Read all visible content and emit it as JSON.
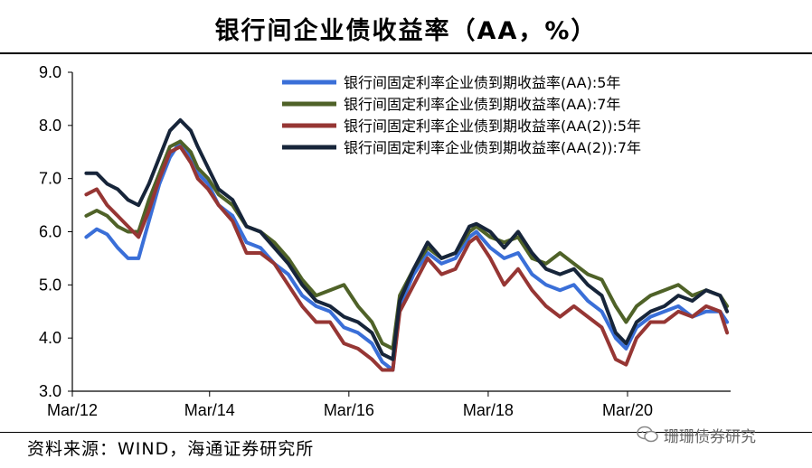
{
  "title": "银行间企业债收益率（AA，%）",
  "source": "资料来源：WIND，海通证券研究所",
  "watermark": "珊珊债券研究",
  "chart_data": {
    "type": "line",
    "title": "银行间企业债收益率（AA，%）",
    "xlabel": "",
    "ylabel": "",
    "ylim": [
      3.0,
      9.0
    ],
    "yticks": [
      3.0,
      4.0,
      5.0,
      6.0,
      7.0,
      8.0,
      9.0
    ],
    "xlim": [
      2012.2,
      2021.65
    ],
    "xticks": [
      {
        "x": 2012.17,
        "label": "Mar/12"
      },
      {
        "x": 2014.17,
        "label": "Mar/14"
      },
      {
        "x": 2016.17,
        "label": "Mar/16"
      },
      {
        "x": 2018.17,
        "label": "Mar/18"
      },
      {
        "x": 2020.17,
        "label": "Mar/20"
      }
    ],
    "legend_position": "top-right",
    "grid": false,
    "series": [
      {
        "name": "银行间固定利率企业债到期收益率(AA):5年",
        "color": "#3a6fd8",
        "x": [
          2012.4,
          2012.55,
          2012.7,
          2012.85,
          2013.0,
          2013.15,
          2013.3,
          2013.45,
          2013.6,
          2013.75,
          2013.9,
          2014.0,
          2014.15,
          2014.3,
          2014.5,
          2014.7,
          2014.9,
          2015.1,
          2015.3,
          2015.5,
          2015.7,
          2015.9,
          2016.1,
          2016.3,
          2016.5,
          2016.65,
          2016.8,
          2016.9,
          2017.1,
          2017.3,
          2017.5,
          2017.7,
          2017.9,
          2018.0,
          2018.2,
          2018.4,
          2018.6,
          2018.8,
          2019.0,
          2019.2,
          2019.4,
          2019.6,
          2019.8,
          2020.0,
          2020.15,
          2020.3,
          2020.5,
          2020.7,
          2020.9,
          2021.1,
          2021.3,
          2021.5,
          2021.6
        ],
        "values": [
          5.9,
          6.05,
          5.95,
          5.7,
          5.5,
          5.5,
          6.2,
          6.9,
          7.4,
          7.7,
          7.4,
          7.1,
          6.9,
          6.5,
          6.3,
          5.8,
          5.7,
          5.4,
          5.2,
          4.8,
          4.6,
          4.5,
          4.2,
          4.1,
          3.9,
          3.55,
          3.4,
          4.6,
          5.2,
          5.6,
          5.4,
          5.5,
          5.9,
          6.0,
          5.7,
          5.5,
          5.6,
          5.2,
          5.0,
          4.9,
          5.0,
          4.7,
          4.5,
          4.0,
          3.8,
          4.2,
          4.4,
          4.5,
          4.6,
          4.4,
          4.5,
          4.5,
          4.3
        ]
      },
      {
        "name": "银行间固定利率企业债到期收益率(AA):7年",
        "color": "#4f6228",
        "x": [
          2012.4,
          2012.55,
          2012.7,
          2012.85,
          2013.0,
          2013.15,
          2013.3,
          2013.45,
          2013.6,
          2013.75,
          2013.9,
          2014.0,
          2014.15,
          2014.3,
          2014.5,
          2014.7,
          2014.9,
          2015.1,
          2015.3,
          2015.5,
          2015.7,
          2015.9,
          2016.1,
          2016.3,
          2016.5,
          2016.65,
          2016.8,
          2016.9,
          2017.1,
          2017.3,
          2017.5,
          2017.7,
          2017.9,
          2018.0,
          2018.2,
          2018.4,
          2018.6,
          2018.8,
          2019.0,
          2019.2,
          2019.4,
          2019.6,
          2019.8,
          2020.0,
          2020.15,
          2020.3,
          2020.5,
          2020.7,
          2020.9,
          2021.1,
          2021.3,
          2021.5,
          2021.6
        ],
        "values": [
          6.3,
          6.4,
          6.3,
          6.1,
          6.0,
          6.0,
          6.6,
          7.1,
          7.6,
          7.7,
          7.5,
          7.2,
          7.0,
          6.7,
          6.5,
          6.1,
          6.0,
          5.8,
          5.5,
          5.1,
          4.8,
          4.9,
          5.0,
          4.6,
          4.3,
          3.9,
          3.8,
          4.8,
          5.3,
          5.7,
          5.5,
          5.6,
          6.0,
          6.1,
          5.9,
          5.8,
          5.9,
          5.5,
          5.4,
          5.6,
          5.4,
          5.2,
          5.1,
          4.6,
          4.3,
          4.6,
          4.8,
          4.9,
          5.0,
          4.8,
          4.9,
          4.8,
          4.6
        ]
      },
      {
        "name": "银行间固定利率企业债到期收益率(AA(2)):5年",
        "color": "#963634",
        "x": [
          2012.4,
          2012.55,
          2012.7,
          2012.85,
          2013.0,
          2013.15,
          2013.3,
          2013.45,
          2013.6,
          2013.75,
          2013.9,
          2014.0,
          2014.15,
          2014.3,
          2014.5,
          2014.7,
          2014.9,
          2015.1,
          2015.3,
          2015.5,
          2015.7,
          2015.9,
          2016.1,
          2016.3,
          2016.5,
          2016.65,
          2016.8,
          2016.9,
          2017.1,
          2017.3,
          2017.5,
          2017.7,
          2017.9,
          2018.0,
          2018.2,
          2018.4,
          2018.6,
          2018.8,
          2019.0,
          2019.2,
          2019.4,
          2019.6,
          2019.8,
          2020.0,
          2020.15,
          2020.3,
          2020.5,
          2020.7,
          2020.9,
          2021.1,
          2021.3,
          2021.5,
          2021.6
        ],
        "values": [
          6.7,
          6.8,
          6.5,
          6.3,
          6.1,
          5.9,
          6.4,
          7.0,
          7.5,
          7.6,
          7.3,
          7.0,
          6.8,
          6.5,
          6.2,
          5.6,
          5.6,
          5.4,
          5.0,
          4.6,
          4.3,
          4.3,
          3.9,
          3.8,
          3.6,
          3.4,
          3.4,
          4.5,
          5.0,
          5.5,
          5.2,
          5.3,
          5.8,
          5.9,
          5.5,
          5.0,
          5.3,
          4.9,
          4.6,
          4.4,
          4.6,
          4.4,
          4.2,
          3.6,
          3.5,
          4.0,
          4.3,
          4.3,
          4.5,
          4.4,
          4.6,
          4.5,
          4.1
        ]
      },
      {
        "name": "银行间固定利率企业债到期收益率(AA(2)):7年",
        "color": "#17253a",
        "x": [
          2012.4,
          2012.55,
          2012.7,
          2012.85,
          2013.0,
          2013.15,
          2013.3,
          2013.45,
          2013.6,
          2013.75,
          2013.9,
          2014.0,
          2014.15,
          2014.3,
          2014.5,
          2014.7,
          2014.9,
          2015.1,
          2015.3,
          2015.5,
          2015.7,
          2015.9,
          2016.1,
          2016.3,
          2016.5,
          2016.65,
          2016.8,
          2016.9,
          2017.1,
          2017.3,
          2017.5,
          2017.7,
          2017.9,
          2018.0,
          2018.2,
          2018.4,
          2018.6,
          2018.8,
          2019.0,
          2019.2,
          2019.4,
          2019.6,
          2019.8,
          2020.0,
          2020.15,
          2020.3,
          2020.5,
          2020.7,
          2020.9,
          2021.1,
          2021.3,
          2021.5,
          2021.6
        ],
        "values": [
          7.1,
          7.1,
          6.9,
          6.8,
          6.6,
          6.5,
          6.9,
          7.4,
          7.9,
          8.1,
          7.9,
          7.6,
          7.2,
          6.8,
          6.6,
          6.1,
          6.0,
          5.7,
          5.4,
          5.0,
          4.7,
          4.6,
          4.4,
          4.3,
          4.1,
          3.7,
          3.6,
          4.7,
          5.3,
          5.8,
          5.5,
          5.6,
          6.1,
          6.15,
          6.0,
          5.7,
          6.0,
          5.6,
          5.3,
          5.2,
          5.3,
          5.0,
          4.8,
          4.1,
          3.9,
          4.3,
          4.5,
          4.6,
          4.8,
          4.7,
          4.9,
          4.8,
          4.5
        ]
      }
    ]
  }
}
